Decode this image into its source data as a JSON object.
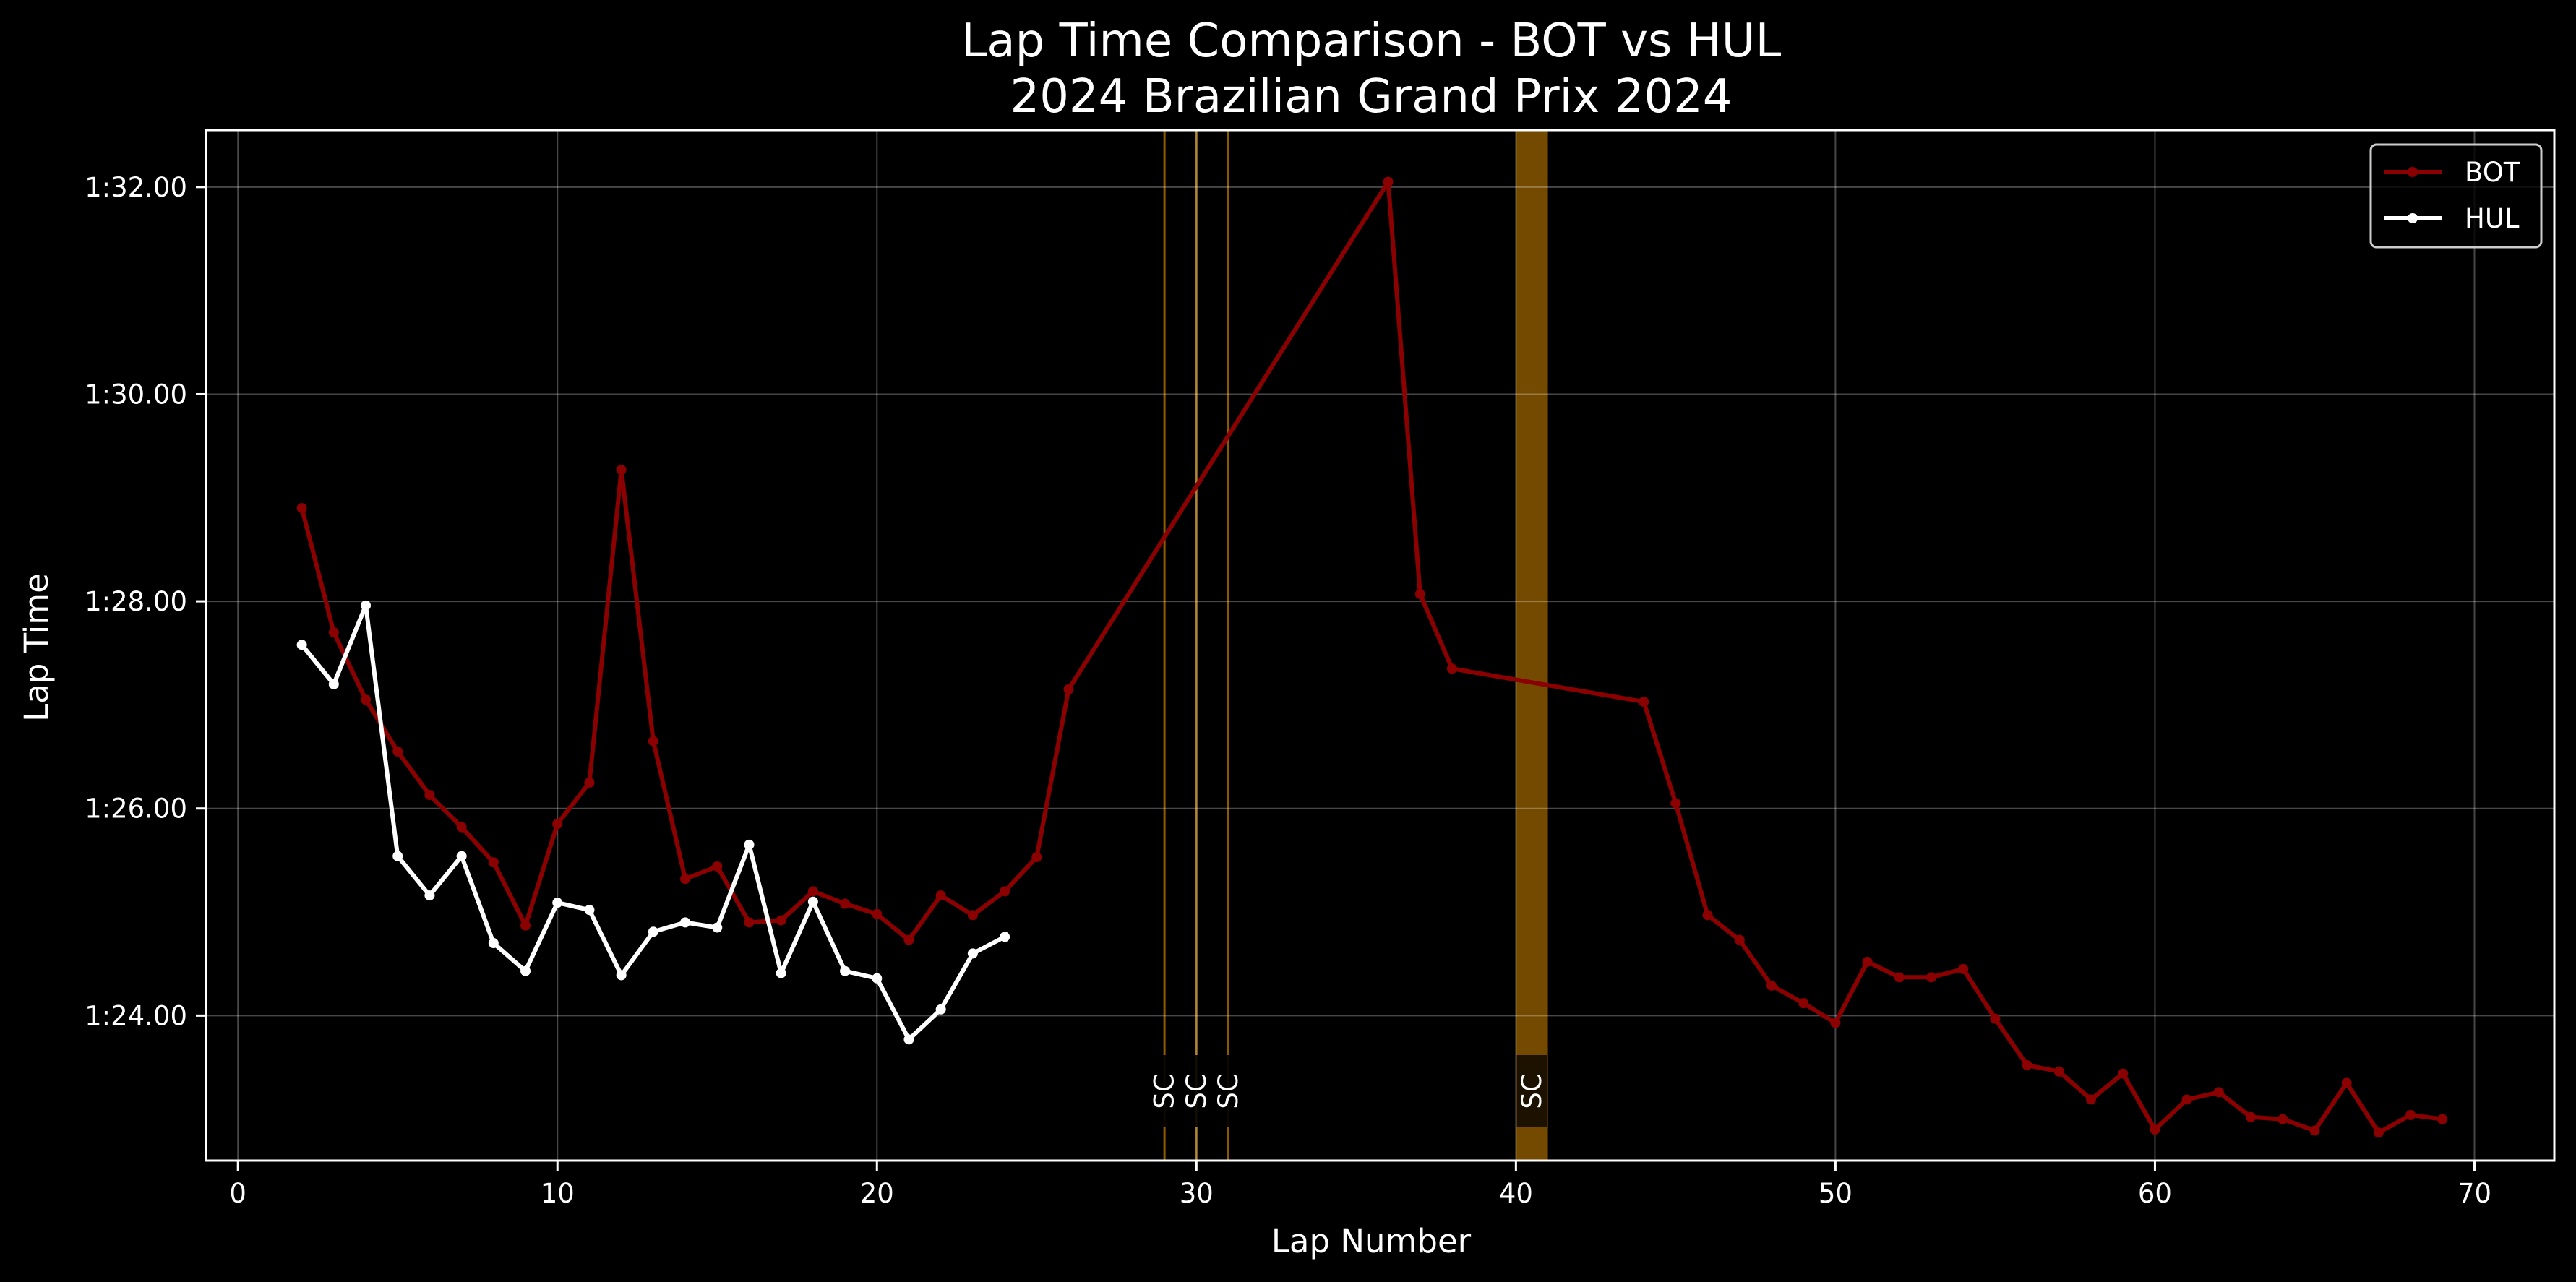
{
  "chart_data": {
    "type": "line",
    "title": "Lap Time Comparison - BOT vs HUL",
    "subtitle": "2024 Brazilian Grand Prix 2024",
    "xlabel": "Lap Number",
    "ylabel": "Lap Time",
    "xlim": [
      -1,
      72.5
    ],
    "ylim": [
      82.6,
      92.55
    ],
    "x_ticks": [
      0,
      10,
      20,
      30,
      40,
      50,
      60,
      70
    ],
    "y_ticks": [
      {
        "value": 84,
        "label": "1:24.00"
      },
      {
        "value": 86,
        "label": "1:26.00"
      },
      {
        "value": 88,
        "label": "1:28.00"
      },
      {
        "value": 90,
        "label": "1:30.00"
      },
      {
        "value": 92,
        "label": "1:32.00"
      }
    ],
    "grid": true,
    "legend_position": "top-right",
    "safety_car": {
      "label": "SC",
      "color": "#ffa500",
      "lines": [
        29,
        30,
        31
      ],
      "band": [
        40,
        41
      ]
    },
    "series": [
      {
        "name": "BOT",
        "color": "#8b0000",
        "points": [
          [
            2,
            88.9
          ],
          [
            3,
            87.7
          ],
          [
            4,
            87.05
          ],
          [
            5,
            86.55
          ],
          [
            6,
            86.13
          ],
          [
            7,
            85.82
          ],
          [
            8,
            85.48
          ],
          [
            9,
            84.87
          ],
          [
            10,
            85.85
          ],
          [
            11,
            86.25
          ],
          [
            12,
            89.27
          ],
          [
            13,
            86.65
          ],
          [
            14,
            85.32
          ],
          [
            15,
            85.44
          ],
          [
            16,
            84.9
          ],
          [
            17,
            84.92
          ],
          [
            18,
            85.2
          ],
          [
            19,
            85.08
          ],
          [
            20,
            84.98
          ],
          [
            21,
            84.73
          ],
          [
            22,
            85.16
          ],
          [
            23,
            84.97
          ],
          [
            24,
            85.2
          ],
          [
            25,
            85.53
          ],
          [
            26,
            87.15
          ],
          [
            36,
            92.05
          ],
          [
            37,
            88.07
          ],
          [
            38,
            87.35
          ],
          [
            44,
            87.03
          ],
          [
            45,
            86.05
          ],
          [
            46,
            84.97
          ],
          [
            47,
            84.73
          ],
          [
            48,
            84.29
          ],
          [
            49,
            84.12
          ],
          [
            50,
            83.93
          ],
          [
            51,
            84.52
          ],
          [
            52,
            84.37
          ],
          [
            53,
            84.37
          ],
          [
            54,
            84.45
          ],
          [
            55,
            83.97
          ],
          [
            56,
            83.52
          ],
          [
            57,
            83.46
          ],
          [
            58,
            83.19
          ],
          [
            59,
            83.44
          ],
          [
            60,
            82.9
          ],
          [
            61,
            83.19
          ],
          [
            62,
            83.26
          ],
          [
            63,
            83.02
          ],
          [
            64,
            83.0
          ],
          [
            65,
            82.89
          ],
          [
            66,
            83.35
          ],
          [
            67,
            82.87
          ],
          [
            68,
            83.04
          ],
          [
            69,
            83.0
          ]
        ]
      },
      {
        "name": "HUL",
        "color": "#ffffff",
        "points": [
          [
            2,
            87.58
          ],
          [
            3,
            87.2
          ],
          [
            4,
            87.96
          ],
          [
            5,
            85.54
          ],
          [
            6,
            85.16
          ],
          [
            7,
            85.54
          ],
          [
            8,
            84.7
          ],
          [
            9,
            84.43
          ],
          [
            10,
            85.09
          ],
          [
            11,
            85.02
          ],
          [
            12,
            84.39
          ],
          [
            13,
            84.81
          ],
          [
            14,
            84.9
          ],
          [
            15,
            84.85
          ],
          [
            16,
            85.65
          ],
          [
            17,
            84.41
          ],
          [
            18,
            85.1
          ],
          [
            19,
            84.43
          ],
          [
            20,
            84.36
          ],
          [
            21,
            83.77
          ],
          [
            22,
            84.06
          ],
          [
            23,
            84.6
          ],
          [
            24,
            84.76
          ]
        ]
      }
    ]
  }
}
